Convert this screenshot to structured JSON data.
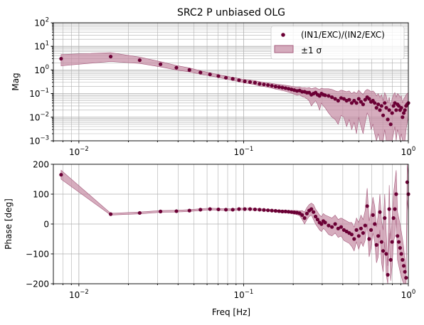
{
  "chart_data": [
    {
      "type": "scatter",
      "title": "SRC2 P unbiased OLG",
      "xlabel": "",
      "ylabel": "Mag",
      "xscale": "log",
      "yscale": "log",
      "xlim": [
        0.007,
        1.0
      ],
      "ylim": [
        0.001,
        100
      ],
      "x_ticks": [
        {
          "value": 0.01,
          "label": "10",
          "exp": "−2"
        },
        {
          "value": 0.1,
          "label": "10",
          "exp": "−1"
        },
        {
          "value": 1.0,
          "label": "10",
          "exp": "0"
        }
      ],
      "y_ticks": [
        {
          "value": 0.001,
          "label": "10",
          "exp": "−3"
        },
        {
          "value": 0.01,
          "label": "10",
          "exp": "−2"
        },
        {
          "value": 0.1,
          "label": "10",
          "exp": "−1"
        },
        {
          "value": 1,
          "label": "10",
          "exp": "0"
        },
        {
          "value": 10,
          "label": "10",
          "exp": "1"
        },
        {
          "value": 100,
          "label": "10",
          "exp": "2"
        }
      ],
      "grid": "major and minor",
      "legend": {
        "placement": "top-right",
        "entries": [
          {
            "label": "(IN1/EXC)/(IN2/EXC)",
            "kind": "marker"
          },
          {
            "label": "±1 σ",
            "kind": "band"
          }
        ]
      },
      "series": [
        {
          "name": "(IN1/EXC)/(IN2/EXC)",
          "x": [
            0.0078,
            0.0156,
            0.0234,
            0.0313,
            0.0391,
            0.0469,
            0.0547,
            0.0625,
            0.0703,
            0.0781,
            0.0859,
            0.0938,
            0.1016,
            0.1094,
            0.1172,
            0.125,
            0.1328,
            0.1406,
            0.1484,
            0.1563,
            0.1641,
            0.1719,
            0.1797,
            0.1875,
            0.1953,
            0.2031,
            0.2109,
            0.2188,
            0.2266,
            0.2344,
            0.2422,
            0.25,
            0.2578,
            0.2656,
            0.2734,
            0.2813,
            0.2891,
            0.2969,
            0.3047,
            0.3125,
            0.3281,
            0.3438,
            0.3594,
            0.375,
            0.3906,
            0.4063,
            0.4219,
            0.4375,
            0.4531,
            0.4688,
            0.4844,
            0.5,
            0.5156,
            0.5313,
            0.5469,
            0.5625,
            0.5781,
            0.5938,
            0.6094,
            0.625,
            0.6406,
            0.6563,
            0.6719,
            0.6875,
            0.7031,
            0.7188,
            0.7344,
            0.75,
            0.7656,
            0.7813,
            0.7969,
            0.8125,
            0.8281,
            0.8438,
            0.8594,
            0.875,
            0.8906,
            0.9063,
            0.9219,
            0.9375,
            0.9531,
            0.9688,
            0.9844,
            1.0
          ],
          "values": [
            3.0,
            3.7,
            2.6,
            1.75,
            1.25,
            1.0,
            0.78,
            0.65,
            0.55,
            0.47,
            0.42,
            0.37,
            0.33,
            0.31,
            0.29,
            0.26,
            0.245,
            0.23,
            0.215,
            0.2,
            0.19,
            0.18,
            0.17,
            0.16,
            0.15,
            0.14,
            0.13,
            0.135,
            0.12,
            0.12,
            0.11,
            0.11,
            0.09,
            0.1,
            0.11,
            0.09,
            0.08,
            0.1,
            0.09,
            0.085,
            0.08,
            0.07,
            0.06,
            0.05,
            0.065,
            0.06,
            0.05,
            0.055,
            0.04,
            0.05,
            0.04,
            0.06,
            0.045,
            0.035,
            0.055,
            0.07,
            0.06,
            0.045,
            0.05,
            0.04,
            0.025,
            0.035,
            0.02,
            0.03,
            0.012,
            0.04,
            0.025,
            0.008,
            0.02,
            0.005,
            0.015,
            0.03,
            0.04,
            0.02,
            0.035,
            0.03,
            0.02,
            0.025,
            0.01,
            0.015,
            0.02,
            0.03,
            0.035,
            0.04
          ],
          "lower": [
            1.5,
            2.3,
            1.9,
            1.35,
            1.0,
            0.83,
            0.66,
            0.56,
            0.48,
            0.41,
            0.36,
            0.32,
            0.28,
            0.26,
            0.24,
            0.21,
            0.2,
            0.185,
            0.17,
            0.155,
            0.145,
            0.135,
            0.125,
            0.115,
            0.105,
            0.095,
            0.085,
            0.09,
            0.075,
            0.07,
            0.06,
            0.05,
            0.03,
            0.04,
            0.05,
            0.035,
            0.02,
            0.04,
            0.03,
            0.025,
            0.015,
            0.01,
            0.008,
            0.005,
            0.012,
            0.01,
            0.004,
            0.008,
            0.003,
            0.006,
            0.002,
            0.01,
            0.004,
            0.002,
            0.006,
            0.015,
            0.01,
            0.003,
            0.005,
            0.002,
            0.001,
            0.002,
            0.001,
            0.001,
            0.001,
            0.003,
            0.001,
            0.001,
            0.001,
            0.001,
            0.001,
            0.002,
            0.004,
            0.001,
            0.003,
            0.002,
            0.001,
            0.002,
            0.001,
            0.001,
            0.001,
            0.003,
            0.006,
            0.01
          ],
          "upper": [
            4.5,
            5.4,
            3.5,
            2.25,
            1.55,
            1.22,
            0.93,
            0.76,
            0.64,
            0.55,
            0.49,
            0.43,
            0.39,
            0.37,
            0.35,
            0.32,
            0.3,
            0.285,
            0.27,
            0.255,
            0.245,
            0.235,
            0.225,
            0.215,
            0.205,
            0.195,
            0.185,
            0.19,
            0.175,
            0.18,
            0.17,
            0.18,
            0.16,
            0.17,
            0.18,
            0.16,
            0.15,
            0.17,
            0.16,
            0.16,
            0.16,
            0.15,
            0.13,
            0.12,
            0.14,
            0.13,
            0.12,
            0.13,
            0.1,
            0.12,
            0.1,
            0.14,
            0.11,
            0.09,
            0.13,
            0.15,
            0.14,
            0.12,
            0.13,
            0.11,
            0.08,
            0.1,
            0.07,
            0.09,
            0.05,
            0.11,
            0.08,
            0.04,
            0.07,
            0.03,
            0.06,
            0.09,
            0.11,
            0.07,
            0.1,
            0.09,
            0.07,
            0.08,
            0.04,
            0.06,
            0.07,
            0.09,
            0.1,
            0.11
          ]
        }
      ]
    },
    {
      "type": "scatter",
      "title": "",
      "xlabel": "Freq [Hz]",
      "ylabel": "Phase [deg]",
      "xscale": "log",
      "yscale": "linear",
      "xlim": [
        0.007,
        1.0
      ],
      "ylim": [
        -200,
        200
      ],
      "x_ticks": [
        {
          "value": 0.01,
          "label": "10",
          "exp": "−2"
        },
        {
          "value": 0.1,
          "label": "10",
          "exp": "−1"
        },
        {
          "value": 1.0,
          "label": "10",
          "exp": "0"
        }
      ],
      "y_ticks": [
        {
          "value": -200,
          "label": "−200"
        },
        {
          "value": -100,
          "label": "−100"
        },
        {
          "value": 0,
          "label": "0"
        },
        {
          "value": 100,
          "label": "100"
        },
        {
          "value": 200,
          "label": "200"
        }
      ],
      "grid": "major and minor x",
      "series": [
        {
          "name": "(IN1/EXC)/(IN2/EXC)",
          "x": [
            0.0078,
            0.0156,
            0.0234,
            0.0313,
            0.0391,
            0.0469,
            0.0547,
            0.0625,
            0.0703,
            0.0781,
            0.0859,
            0.0938,
            0.1016,
            0.1094,
            0.1172,
            0.125,
            0.1328,
            0.1406,
            0.1484,
            0.1563,
            0.1641,
            0.1719,
            0.1797,
            0.1875,
            0.1953,
            0.2031,
            0.2109,
            0.2188,
            0.2266,
            0.2344,
            0.2422,
            0.25,
            0.2578,
            0.2656,
            0.2734,
            0.2813,
            0.2891,
            0.2969,
            0.3047,
            0.3125,
            0.3281,
            0.3438,
            0.3594,
            0.375,
            0.3906,
            0.4063,
            0.4219,
            0.4375,
            0.4531,
            0.4688,
            0.4844,
            0.5,
            0.5156,
            0.5313,
            0.5469,
            0.5625,
            0.5781,
            0.5938,
            0.6094,
            0.625,
            0.6406,
            0.6563,
            0.6719,
            0.6875,
            0.7031,
            0.7188,
            0.7344,
            0.75,
            0.7656,
            0.7813,
            0.7969,
            0.8125,
            0.8281,
            0.8438,
            0.8594,
            0.875,
            0.8906,
            0.9063,
            0.9219,
            0.9375,
            0.9531,
            0.9688,
            0.9844,
            1.0
          ],
          "values": [
            165,
            33,
            37,
            42,
            43,
            45,
            48,
            50,
            49,
            48,
            48,
            50,
            50,
            50,
            49,
            48,
            47,
            46,
            45,
            44,
            43,
            42,
            42,
            41,
            40,
            39,
            38,
            36,
            30,
            20,
            35,
            45,
            50,
            40,
            25,
            15,
            5,
            0,
            10,
            5,
            -5,
            -10,
            0,
            -15,
            -10,
            -20,
            -25,
            -30,
            -35,
            -50,
            -20,
            -40,
            -15,
            -30,
            -5,
            60,
            -50,
            -20,
            30,
            0,
            -70,
            -40,
            40,
            -60,
            -90,
            20,
            -100,
            -170,
            50,
            -120,
            -60,
            20,
            50,
            100,
            -40,
            -60,
            -80,
            -100,
            -120,
            -140,
            -160,
            -180,
            140,
            100
          ],
          "lower": [
            150,
            30,
            34,
            39,
            40,
            42,
            45,
            47,
            46,
            45,
            45,
            47,
            47,
            47,
            46,
            45,
            44,
            43,
            42,
            41,
            39,
            38,
            38,
            37,
            35,
            33,
            31,
            28,
            15,
            0,
            15,
            25,
            30,
            15,
            0,
            -10,
            -20,
            -25,
            -15,
            -20,
            -35,
            -40,
            -30,
            -45,
            -40,
            -55,
            -60,
            -65,
            -75,
            -90,
            -60,
            -85,
            -60,
            -75,
            -55,
            0,
            -110,
            -80,
            -30,
            -60,
            -130,
            -110,
            -20,
            -130,
            -160,
            -60,
            -170,
            -200,
            -30,
            -190,
            -140,
            -60,
            -40,
            20,
            -120,
            -140,
            -160,
            -175,
            -190,
            -200,
            -200,
            -200,
            80,
            40
          ],
          "upper": [
            180,
            36,
            40,
            45,
            46,
            48,
            51,
            53,
            52,
            51,
            51,
            53,
            53,
            53,
            52,
            51,
            50,
            49,
            48,
            47,
            47,
            46,
            46,
            45,
            45,
            45,
            45,
            44,
            45,
            40,
            55,
            65,
            70,
            65,
            50,
            40,
            30,
            25,
            35,
            30,
            25,
            20,
            30,
            15,
            20,
            15,
            10,
            5,
            5,
            -10,
            20,
            5,
            30,
            15,
            45,
            120,
            10,
            40,
            90,
            60,
            -10,
            30,
            100,
            10,
            -20,
            100,
            -30,
            -140,
            130,
            -50,
            20,
            100,
            140,
            180,
            40,
            20,
            0,
            -25,
            -50,
            -80,
            -120,
            -160,
            200,
            160
          ]
        }
      ]
    }
  ],
  "colors": {
    "marker": "#6b0035",
    "band": "#c48aa3",
    "band_edge": "#a65d7e",
    "grid": "#b0b0b0"
  }
}
